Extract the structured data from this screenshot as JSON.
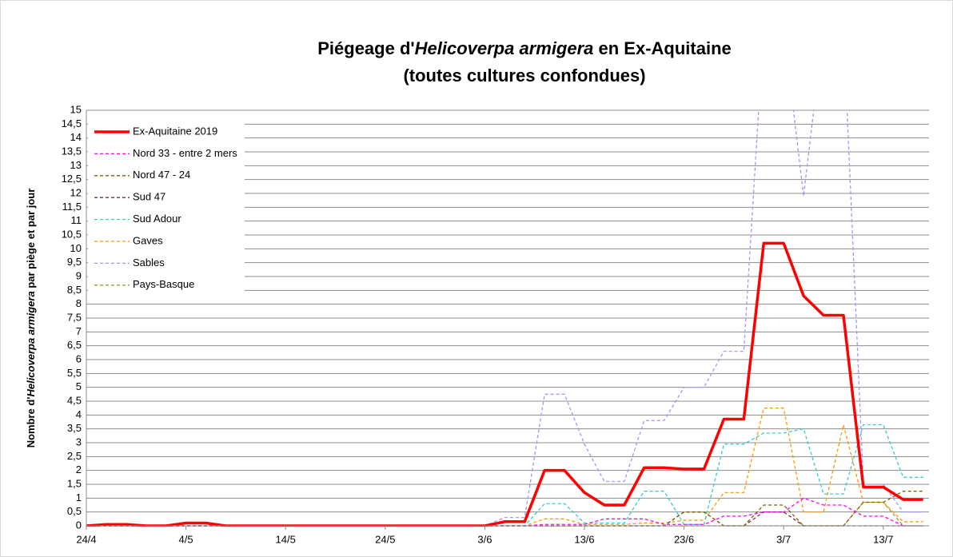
{
  "chart_data": {
    "type": "line",
    "title": [
      "Piégeage d'",
      "Helicoverpa armigera",
      " en Ex-Aquitaine"
    ],
    "subtitle": "(toutes cultures confondues)",
    "y_label": [
      "Nombre d'",
      "Helicoverpa armigera",
      " par piège et par jour"
    ],
    "categories": [
      "24/4",
      null,
      null,
      null,
      null,
      "4/5",
      null,
      null,
      null,
      null,
      "14/5",
      null,
      null,
      null,
      null,
      "24/5",
      null,
      null,
      null,
      null,
      "3/6",
      null,
      null,
      null,
      null,
      "13/6",
      null,
      null,
      null,
      null,
      "23/6",
      null,
      null,
      null,
      null,
      "3/7",
      null,
      null,
      null,
      null,
      "13/7",
      null,
      null
    ],
    "ylim": [
      0,
      15
    ],
    "yticks": [
      0,
      {
        "value": 0.5,
        "label": "0,5"
      },
      1,
      {
        "value": 1.5,
        "label": "1,5"
      },
      2,
      {
        "value": 2.5,
        "label": "2,5"
      },
      3,
      {
        "value": 3.5,
        "label": "3,5"
      },
      4,
      {
        "value": 4.5,
        "label": "4,5"
      },
      5,
      {
        "value": 5.5,
        "label": "5,5"
      },
      6,
      {
        "value": 6.5,
        "label": "6,5"
      },
      7,
      {
        "value": 7.5,
        "label": "7,5"
      },
      8,
      {
        "value": 8.5,
        "label": "8,5"
      },
      9,
      {
        "value": 9.5,
        "label": "9,5"
      },
      10,
      {
        "value": 10.5,
        "label": "10,5"
      },
      11,
      {
        "value": 11.5,
        "label": "11,5"
      },
      12,
      {
        "value": 12.5,
        "label": "12,5"
      },
      13,
      {
        "value": 13.5,
        "label": "13,5"
      },
      14,
      {
        "value": 14.5,
        "label": "14,5"
      },
      15
    ],
    "grid": true,
    "legend": "top-left",
    "series": [
      {
        "name": "Ex-Aquitaine 2019",
        "color": "#ff0000",
        "dashed": false,
        "values": [
          0,
          0.05,
          0.05,
          0,
          0,
          0.1,
          0.1,
          0,
          0,
          0,
          0,
          0,
          0,
          0,
          0,
          0,
          0,
          0,
          0,
          0,
          0,
          0.15,
          0.15,
          2,
          2,
          1.2,
          0.75,
          0.75,
          2.1,
          2.1,
          2.05,
          2.05,
          3.85,
          3.85,
          10.2,
          10.2,
          8.3,
          7.6,
          7.6,
          1.4,
          1.4,
          0.95,
          0.95
        ]
      },
      {
        "name": "Nord 33 - entre 2 mers",
        "color": "#ff00ff",
        "dashed": true,
        "values": [
          0,
          0,
          0,
          0,
          0,
          0,
          0,
          0,
          0,
          0,
          0,
          0,
          0,
          0,
          0,
          0,
          0,
          0,
          0,
          0,
          0,
          0,
          0,
          0.05,
          0.05,
          0.05,
          0.25,
          0.25,
          0.25,
          0.05,
          0.05,
          0.05,
          0.35,
          0.35,
          0.5,
          0.5,
          1,
          0.75,
          0.75,
          0.35,
          0.35,
          0,
          0
        ]
      },
      {
        "name": "Nord 47 - 24",
        "color": "#806000",
        "dashed": true,
        "values": [
          0,
          0,
          0,
          0,
          0,
          0,
          0,
          0,
          0,
          0,
          0,
          0,
          0,
          0,
          0,
          0,
          0,
          0,
          0,
          0,
          0,
          0,
          0,
          0,
          0,
          0,
          0,
          0,
          0,
          0,
          0.5,
          0.5,
          0,
          0,
          0.75,
          0.75,
          0,
          0,
          0,
          0.85,
          0.85,
          1.25,
          1.25
        ]
      },
      {
        "name": "Sud 47",
        "color": "#7b2c3a",
        "dashed": true,
        "values": [
          0,
          0,
          0,
          0,
          0,
          0,
          0,
          0,
          0,
          0,
          0,
          0,
          0,
          0,
          0,
          0,
          0,
          0,
          0,
          0,
          0,
          0,
          0,
          0,
          0,
          0,
          0,
          0,
          0,
          0,
          0.5,
          0.5,
          0,
          0,
          0.5,
          0.5,
          0,
          0,
          0,
          0,
          0,
          0,
          0
        ]
      },
      {
        "name": "Sud Adour",
        "color": "#33cccc",
        "dashed": true,
        "values": [
          0,
          0,
          0,
          0,
          0,
          0,
          0,
          0,
          0,
          0,
          0,
          0,
          0,
          0,
          0,
          0,
          0,
          0,
          0,
          0,
          0,
          0,
          0,
          0.8,
          0.8,
          0.1,
          0.1,
          0.1,
          1.25,
          1.25,
          0.05,
          0.05,
          2.95,
          2.95,
          3.35,
          3.35,
          3.5,
          1.15,
          1.15,
          3.65,
          3.65,
          1.75,
          1.75
        ]
      },
      {
        "name": "Gaves",
        "color": "#ff9900",
        "dashed": true,
        "values": [
          0,
          0,
          0,
          0,
          0,
          0,
          0,
          0,
          0,
          0,
          0,
          0,
          0,
          0,
          0,
          0,
          0,
          0,
          0,
          0,
          0,
          0,
          0,
          0.25,
          0.25,
          0.05,
          0.05,
          0.05,
          0.1,
          0.1,
          0.2,
          0.2,
          1.2,
          1.2,
          4.25,
          4.25,
          0.5,
          0.5,
          3.65,
          0.85,
          0.85,
          0.15,
          0.15
        ]
      },
      {
        "name": "Sables",
        "color": "#9999ff",
        "dashed": true,
        "values": [
          0,
          0,
          0,
          0,
          0,
          0,
          0,
          0,
          0,
          0,
          0,
          0,
          0,
          0,
          0,
          0,
          0,
          0,
          0,
          0,
          0,
          0.3,
          0.3,
          4.75,
          4.75,
          2.95,
          1.6,
          1.6,
          3.8,
          3.8,
          5,
          5,
          6.3,
          6.3,
          18,
          18,
          11.9,
          18,
          18,
          1.5,
          1.5,
          0.5,
          0.5
        ]
      },
      {
        "name": "Pays-Basque",
        "color": "#99993b",
        "dashed": true,
        "values": [
          0,
          0,
          0,
          0,
          0,
          0,
          0,
          0,
          0,
          0,
          0,
          0,
          0,
          0,
          0,
          0,
          0,
          0,
          0,
          0,
          0,
          0,
          0,
          0,
          0,
          0,
          0,
          0,
          0,
          0,
          0,
          0,
          0,
          0,
          0,
          0,
          0,
          0,
          0,
          0.85,
          0.85,
          0,
          0
        ]
      }
    ]
  }
}
